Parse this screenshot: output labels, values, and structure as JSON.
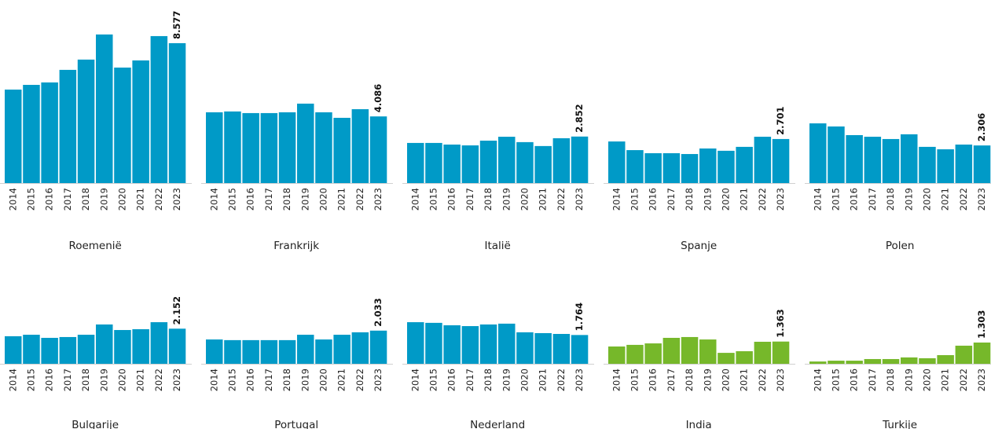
{
  "chart_data": [
    {
      "type": "bar",
      "title": "Roemenië",
      "color": "#009ac7",
      "ylim": [
        0,
        9200
      ],
      "categories": [
        "2014",
        "2015",
        "2016",
        "2017",
        "2018",
        "2019",
        "2020",
        "2021",
        "2022",
        "2023"
      ],
      "values": [
        5730,
        6020,
        6170,
        6940,
        7570,
        9110,
        7080,
        7520,
        9010,
        8577
      ],
      "value_labels": [
        null,
        null,
        null,
        null,
        null,
        null,
        null,
        null,
        null,
        "8.577"
      ]
    },
    {
      "type": "bar",
      "title": "Frankrijk",
      "color": "#009ac7",
      "ylim": [
        0,
        9200
      ],
      "categories": [
        "2014",
        "2015",
        "2016",
        "2017",
        "2018",
        "2019",
        "2020",
        "2021",
        "2022",
        "2023"
      ],
      "values": [
        4340,
        4390,
        4290,
        4290,
        4340,
        4870,
        4340,
        4000,
        4530,
        4086
      ],
      "value_labels": [
        null,
        null,
        null,
        null,
        null,
        null,
        null,
        null,
        null,
        "4.086"
      ]
    },
    {
      "type": "bar",
      "title": "Italië",
      "color": "#009ac7",
      "ylim": [
        0,
        9200
      ],
      "categories": [
        "2014",
        "2015",
        "2016",
        "2017",
        "2018",
        "2019",
        "2020",
        "2021",
        "2022",
        "2023"
      ],
      "values": [
        2460,
        2460,
        2360,
        2310,
        2600,
        2840,
        2510,
        2270,
        2750,
        2852
      ],
      "value_labels": [
        null,
        null,
        null,
        null,
        null,
        null,
        null,
        null,
        null,
        "2.852"
      ]
    },
    {
      "type": "bar",
      "title": "Spanje",
      "color": "#009ac7",
      "ylim": [
        0,
        9200
      ],
      "categories": [
        "2014",
        "2015",
        "2016",
        "2017",
        "2018",
        "2019",
        "2020",
        "2021",
        "2022",
        "2023"
      ],
      "values": [
        2550,
        2020,
        1830,
        1830,
        1780,
        2120,
        1980,
        2220,
        2840,
        2701
      ],
      "value_labels": [
        null,
        null,
        null,
        null,
        null,
        null,
        null,
        null,
        null,
        "2.701"
      ]
    },
    {
      "type": "bar",
      "title": "Polen",
      "color": "#009ac7",
      "ylim": [
        0,
        9200
      ],
      "categories": [
        "2014",
        "2015",
        "2016",
        "2017",
        "2018",
        "2019",
        "2020",
        "2021",
        "2022",
        "2023"
      ],
      "values": [
        3660,
        3470,
        2940,
        2840,
        2700,
        2990,
        2220,
        2070,
        2360,
        2306
      ],
      "value_labels": [
        null,
        null,
        null,
        null,
        null,
        null,
        null,
        null,
        null,
        "2.306"
      ]
    },
    {
      "type": "bar",
      "title": "Bulgarije",
      "color": "#009ac7",
      "ylim": [
        0,
        9200
      ],
      "categories": [
        "2014",
        "2015",
        "2016",
        "2017",
        "2018",
        "2019",
        "2020",
        "2021",
        "2022",
        "2023"
      ],
      "values": [
        1690,
        1780,
        1590,
        1640,
        1780,
        2410,
        2070,
        2120,
        2550,
        2152
      ],
      "value_labels": [
        null,
        null,
        null,
        null,
        null,
        null,
        null,
        null,
        null,
        "2.152"
      ]
    },
    {
      "type": "bar",
      "title": "Portugal",
      "color": "#009ac7",
      "ylim": [
        0,
        9200
      ],
      "categories": [
        "2014",
        "2015",
        "2016",
        "2017",
        "2018",
        "2019",
        "2020",
        "2021",
        "2022",
        "2023"
      ],
      "values": [
        1490,
        1450,
        1450,
        1450,
        1450,
        1780,
        1490,
        1780,
        1930,
        2033
      ],
      "value_labels": [
        null,
        null,
        null,
        null,
        null,
        null,
        null,
        null,
        null,
        "2.033"
      ]
    },
    {
      "type": "bar",
      "title": "Nederland",
      "color": "#009ac7",
      "ylim": [
        0,
        9200
      ],
      "categories": [
        "2014",
        "2015",
        "2016",
        "2017",
        "2018",
        "2019",
        "2020",
        "2021",
        "2022",
        "2023"
      ],
      "values": [
        2550,
        2510,
        2360,
        2310,
        2410,
        2460,
        1930,
        1880,
        1830,
        1764
      ],
      "value_labels": [
        null,
        null,
        null,
        null,
        null,
        null,
        null,
        null,
        null,
        "1.764"
      ]
    },
    {
      "type": "bar",
      "title": "India",
      "color": "#76b82a",
      "ylim": [
        0,
        9200
      ],
      "categories": [
        "2014",
        "2015",
        "2016",
        "2017",
        "2018",
        "2019",
        "2020",
        "2021",
        "2022",
        "2023"
      ],
      "values": [
        1060,
        1160,
        1250,
        1590,
        1640,
        1490,
        670,
        770,
        1350,
        1363
      ],
      "value_labels": [
        null,
        null,
        null,
        null,
        null,
        null,
        null,
        null,
        null,
        "1.363"
      ]
    },
    {
      "type": "bar",
      "title": "Turkije",
      "color": "#76b82a",
      "ylim": [
        0,
        9200
      ],
      "categories": [
        "2014",
        "2015",
        "2016",
        "2017",
        "2018",
        "2019",
        "2020",
        "2021",
        "2022",
        "2023"
      ],
      "values": [
        140,
        190,
        190,
        290,
        290,
        390,
        340,
        530,
        1110,
        1303
      ],
      "value_labels": [
        null,
        null,
        null,
        null,
        null,
        null,
        null,
        null,
        null,
        "1.303"
      ]
    }
  ]
}
